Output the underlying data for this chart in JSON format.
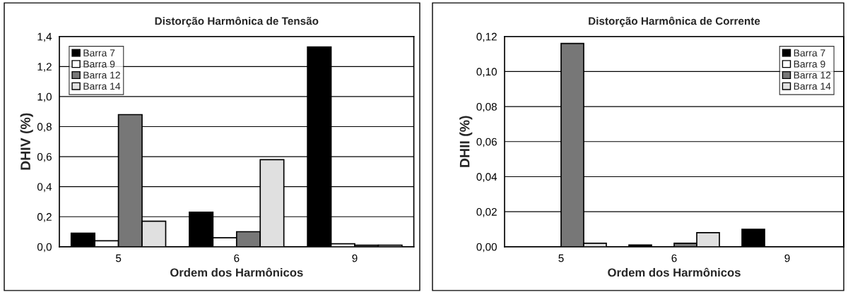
{
  "chart_data": [
    {
      "type": "bar",
      "title": "Distorção Harmônica de Tensão",
      "xlabel": "Ordem dos Harmônicos",
      "ylabel": "DHIV (%)",
      "categories": [
        "5",
        "6",
        "9"
      ],
      "series": [
        {
          "name": "Barra 7",
          "color": "#000000",
          "values": [
            0.09,
            0.23,
            1.33
          ]
        },
        {
          "name": "Barra 9",
          "color": "#ffffff",
          "values": [
            0.04,
            0.06,
            0.02
          ]
        },
        {
          "name": "Barra 12",
          "color": "#777777",
          "values": [
            0.88,
            0.1,
            0.01
          ]
        },
        {
          "name": "Barra 14",
          "color": "#e0e0e0",
          "values": [
            0.17,
            0.58,
            0.01
          ]
        }
      ],
      "ylim": [
        0,
        1.4
      ],
      "yticks": [
        {
          "value": 0,
          "label": "0,0"
        },
        {
          "value": 0.2,
          "label": "0,2"
        },
        {
          "value": 0.4,
          "label": "0,4"
        },
        {
          "value": 0.6,
          "label": "0,6"
        },
        {
          "value": 0.8,
          "label": "0,8"
        },
        {
          "value": 1.0,
          "label": "1,0"
        },
        {
          "value": 1.2,
          "label": "1,2"
        },
        {
          "value": 1.4,
          "label": "1,4"
        }
      ],
      "grid": "y",
      "legend": "top left"
    },
    {
      "type": "bar",
      "title": "Distorção Harmônica de Corrente",
      "xlabel": "Ordem dos Harmônicos",
      "ylabel": "DHII (%)",
      "categories": [
        "5",
        "6",
        "9"
      ],
      "series": [
        {
          "name": "Barra 7",
          "color": "#000000",
          "values": [
            0,
            0.001,
            0.01
          ]
        },
        {
          "name": "Barra 9",
          "color": "#ffffff",
          "values": [
            0,
            0,
            0
          ]
        },
        {
          "name": "Barra 12",
          "color": "#777777",
          "values": [
            0.116,
            0.002,
            0
          ]
        },
        {
          "name": "Barra 14",
          "color": "#e0e0e0",
          "values": [
            0.002,
            0.008,
            0
          ]
        }
      ],
      "ylim": [
        0,
        0.12
      ],
      "yticks": [
        {
          "value": 0,
          "label": "0,00"
        },
        {
          "value": 0.02,
          "label": "0,02"
        },
        {
          "value": 0.04,
          "label": "0,04"
        },
        {
          "value": 0.06,
          "label": "0,06"
        },
        {
          "value": 0.08,
          "label": "0,08"
        },
        {
          "value": 0.1,
          "label": "0,10"
        },
        {
          "value": 0.12,
          "label": "0,12"
        }
      ],
      "grid": "y",
      "legend": "top right"
    }
  ]
}
